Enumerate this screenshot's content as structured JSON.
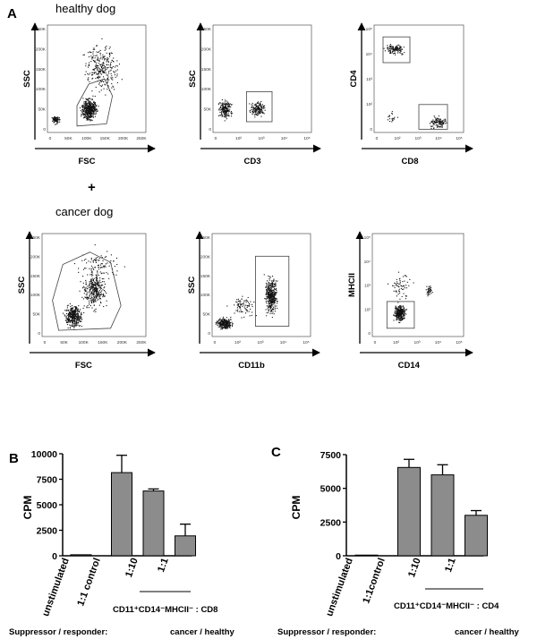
{
  "panels": {
    "a": "A",
    "b": "B",
    "c": "C"
  },
  "flow": {
    "healthy_label": "healthy dog",
    "cancer_label": "cancer dog",
    "plus": "+",
    "plots": [
      {
        "id": "h-fsc",
        "ylabel": "SSC",
        "xlabel": "FSC",
        "yticks": [
          "250K",
          "200K",
          "150K",
          "100K",
          "50K",
          "0"
        ],
        "xticks": [
          "0",
          "50K",
          "100K",
          "150K",
          "200K",
          "250K"
        ]
      },
      {
        "id": "h-cd3",
        "ylabel": "SSC",
        "xlabel": "CD3",
        "yticks": [
          "250K",
          "200K",
          "150K",
          "100K",
          "50K",
          "0"
        ],
        "xticks": [
          "0",
          "10²",
          "10³",
          "10⁴",
          "10⁵"
        ]
      },
      {
        "id": "h-cd4",
        "ylabel": "CD4",
        "xlabel": "CD8",
        "yticks": [
          "10⁵",
          "10⁴",
          "10³",
          "10²",
          "0"
        ],
        "xticks": [
          "0",
          "10²",
          "10³",
          "10⁴",
          "10⁵"
        ]
      },
      {
        "id": "c-fsc",
        "ylabel": "SSC",
        "xlabel": "FSC",
        "yticks": [
          "250K",
          "200K",
          "150K",
          "100K",
          "50K",
          "0"
        ],
        "xticks": [
          "0",
          "50K",
          "100K",
          "150K",
          "200K",
          "250K"
        ]
      },
      {
        "id": "c-cd11b",
        "ylabel": "SSC",
        "xlabel": "CD11b",
        "yticks": [
          "250K",
          "200K",
          "150K",
          "100K",
          "50K",
          "0"
        ],
        "xticks": [
          "0",
          "10²",
          "10³",
          "10⁴",
          "10⁵"
        ]
      },
      {
        "id": "c-mhcii",
        "ylabel": "MHCII",
        "xlabel": "CD14",
        "yticks": [
          "10⁵",
          "10⁴",
          "10³",
          "10²",
          "0"
        ],
        "xticks": [
          "0",
          "10²",
          "10³",
          "10⁴",
          "10⁵"
        ]
      }
    ]
  },
  "chart_data": [
    {
      "type": "bar",
      "title": "B",
      "ylabel": "CPM",
      "ylim": [
        0,
        10000
      ],
      "yticks": [
        "0",
        "2500",
        "5000",
        "7500",
        "10000"
      ],
      "categories": [
        "unstimulated",
        "1:1 control",
        "1:10",
        "1:1"
      ],
      "values": [
        100,
        8150,
        6350,
        1950
      ],
      "errors": [
        0,
        1700,
        200,
        1150
      ],
      "group_label": "CD11⁺CD14⁻MHCII⁻ : CD8",
      "footer_label": "Suppressor / responder:",
      "footer_value": "cancer / healthy"
    },
    {
      "type": "bar",
      "title": "C",
      "ylabel": "CPM",
      "ylim": [
        0,
        7500
      ],
      "yticks": [
        "0",
        "2500",
        "5000",
        "7500"
      ],
      "categories": [
        "unstimulated",
        "1:1control",
        "1:10",
        "1:1"
      ],
      "values": [
        50,
        6550,
        6000,
        3000
      ],
      "errors": [
        0,
        600,
        750,
        350
      ],
      "group_label": "CD11⁺CD14⁻MHCII⁻ : CD4",
      "footer_label": "Suppressor / responder:",
      "footer_value": "cancer / healthy"
    }
  ]
}
